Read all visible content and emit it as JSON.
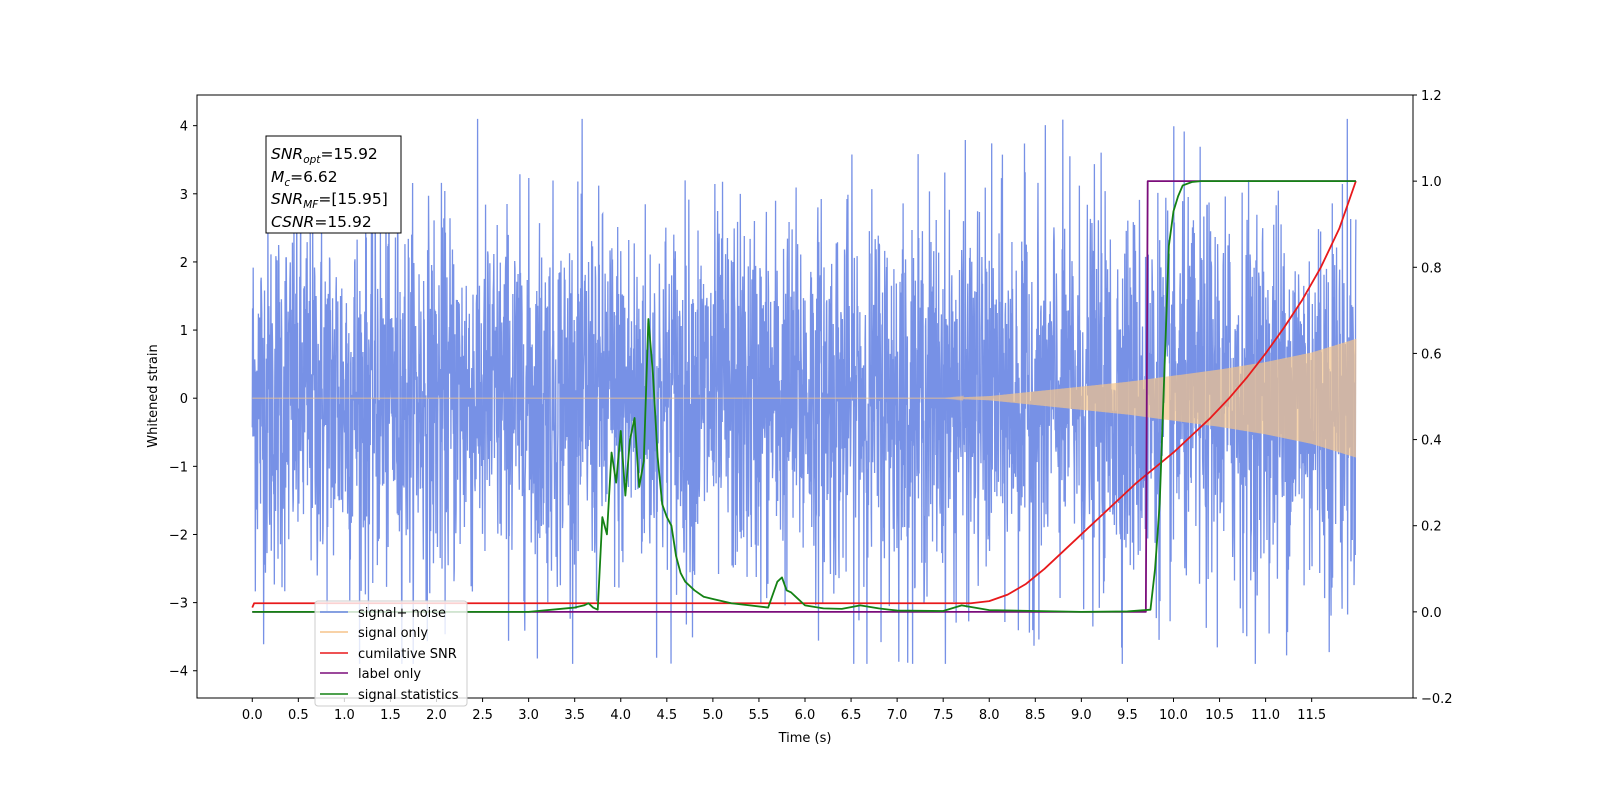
{
  "chart_data": {
    "type": "line",
    "xlabel": "Time (s)",
    "ylabel": "Whitened strain",
    "xlim": [
      -0.6,
      12.6
    ],
    "ylim": [
      -4.4,
      4.45
    ],
    "y2lim": [
      -0.2,
      1.2
    ],
    "x_ticks": [
      "0.0",
      "0.5",
      "1.0",
      "1.5",
      "2.0",
      "2.5",
      "3.0",
      "3.5",
      "4.0",
      "4.5",
      "5.0",
      "5.5",
      "6.0",
      "6.5",
      "7.0",
      "7.5",
      "8.0",
      "8.5",
      "9.0",
      "9.5",
      "10.0",
      "10.5",
      "11.0",
      "11.5"
    ],
    "y_ticks": [
      "−4",
      "−3",
      "−2",
      "−1",
      "0",
      "1",
      "2",
      "3",
      "4"
    ],
    "y2_ticks": [
      "−0.2",
      "0.0",
      "0.2",
      "0.4",
      "0.6",
      "0.8",
      "1.0",
      "1.2"
    ],
    "legend_position": "lower-left",
    "grid": false,
    "annotation": {
      "lines": [
        {
          "label": "SNR",
          "sub": "opt",
          "value": "=15.92"
        },
        {
          "label": "M",
          "sub": "c",
          "value": "=6.62"
        },
        {
          "label": "SNR",
          "sub": "MF",
          "value": "=[15.95]"
        },
        {
          "label": "CSNR",
          "sub": "",
          "value": "=15.92"
        }
      ]
    },
    "series": [
      {
        "name": "signal+ noise",
        "axis": "left",
        "color": "#6b88e4",
        "noise": {
          "x_start": 0.0,
          "x_end": 11.98,
          "envelope": [
            [
              0.0,
              1.45
            ],
            [
              4.0,
              1.4
            ],
            [
              7.5,
              1.45
            ],
            [
              9.5,
              1.45
            ],
            [
              11.98,
              1.55
            ]
          ],
          "peak": 4.1,
          "trough": -3.9
        }
      },
      {
        "name": "signal only",
        "axis": "left",
        "color": "#f5c48a",
        "envelope": [
          [
            0.0,
            0.0
          ],
          [
            7.5,
            0.0
          ],
          [
            8.0,
            0.03
          ],
          [
            8.5,
            0.1
          ],
          [
            9.0,
            0.17
          ],
          [
            9.5,
            0.24
          ],
          [
            10.0,
            0.33
          ],
          [
            10.5,
            0.42
          ],
          [
            11.0,
            0.53
          ],
          [
            11.5,
            0.67
          ],
          [
            11.98,
            0.87
          ]
        ]
      },
      {
        "name": "cumilative SNR",
        "axis": "right",
        "color": "#e8191b",
        "x": [
          0.0,
          0.02,
          7.5,
          7.8,
          8.0,
          8.2,
          8.4,
          8.6,
          8.8,
          9.0,
          9.2,
          9.4,
          9.6,
          9.8,
          10.0,
          10.2,
          10.4,
          10.6,
          10.8,
          11.0,
          11.2,
          11.4,
          11.6,
          11.8,
          11.98
        ],
        "y": [
          0.01,
          0.02,
          0.02,
          0.02,
          0.025,
          0.04,
          0.065,
          0.1,
          0.14,
          0.18,
          0.22,
          0.26,
          0.3,
          0.335,
          0.37,
          0.41,
          0.45,
          0.495,
          0.545,
          0.6,
          0.66,
          0.725,
          0.8,
          0.89,
          1.0
        ]
      },
      {
        "name": "label only",
        "axis": "right",
        "color": "#7b0d7b",
        "x": [
          0.0,
          9.7,
          9.72,
          11.98
        ],
        "y": [
          0.0,
          0.0,
          1.0,
          1.0
        ]
      },
      {
        "name": "signal statistics",
        "axis": "right",
        "color": "#148214",
        "x": [
          0.0,
          3.0,
          3.5,
          3.6,
          3.65,
          3.7,
          3.75,
          3.8,
          3.85,
          3.9,
          3.95,
          4.0,
          4.05,
          4.1,
          4.15,
          4.2,
          4.25,
          4.3,
          4.35,
          4.4,
          4.45,
          4.5,
          4.55,
          4.6,
          4.65,
          4.7,
          4.75,
          4.8,
          4.9,
          5.0,
          5.2,
          5.4,
          5.6,
          5.7,
          5.75,
          5.8,
          5.85,
          5.9,
          6.0,
          6.2,
          6.4,
          6.6,
          6.8,
          7.0,
          7.5,
          7.7,
          8.0,
          8.5,
          9.0,
          9.5,
          9.75,
          9.8,
          9.85,
          9.9,
          9.95,
          10.0,
          10.05,
          10.1,
          10.2,
          10.3,
          10.5,
          11.98
        ],
        "y": [
          0.0,
          0.0,
          0.01,
          0.015,
          0.02,
          0.01,
          0.005,
          0.22,
          0.18,
          0.37,
          0.3,
          0.42,
          0.27,
          0.4,
          0.45,
          0.29,
          0.35,
          0.68,
          0.55,
          0.36,
          0.25,
          0.22,
          0.2,
          0.13,
          0.09,
          0.07,
          0.06,
          0.05,
          0.035,
          0.03,
          0.02,
          0.015,
          0.01,
          0.07,
          0.08,
          0.05,
          0.045,
          0.035,
          0.015,
          0.008,
          0.007,
          0.015,
          0.008,
          0.003,
          0.002,
          0.015,
          0.004,
          0.002,
          0.0,
          0.001,
          0.005,
          0.1,
          0.25,
          0.55,
          0.85,
          0.93,
          0.965,
          0.99,
          0.998,
          1.0,
          1.0,
          1.0
        ]
      }
    ]
  }
}
